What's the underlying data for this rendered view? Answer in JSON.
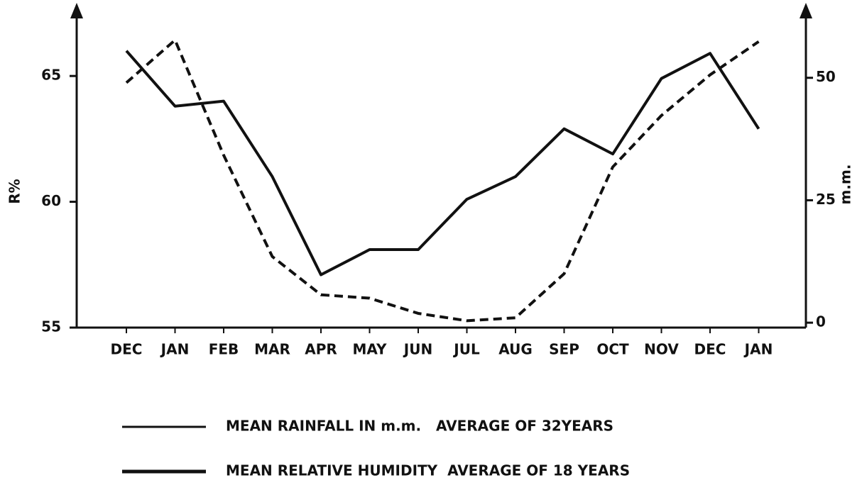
{
  "chart_data": {
    "type": "line",
    "categories": [
      "DEC",
      "JAN",
      "FEB",
      "MAR",
      "APR",
      "MAY",
      "JUN",
      "JUL",
      "AUG",
      "SEP",
      "OCT",
      "NOV",
      "DEC",
      "JAN"
    ],
    "ylabel": "R%",
    "y2label": "m.m.",
    "ylim": [
      55,
      67.4
    ],
    "yticks": [
      55,
      60,
      65
    ],
    "y2lim": [
      -1,
      62.7
    ],
    "y2ticks": [
      0,
      25,
      50
    ],
    "series": [
      {
        "name": "MEAN RAINFALL IN m.m.   AVERAGE OF 32YEARS",
        "color": "#111111",
        "dash": true,
        "axis": "y2",
        "values": [
          49,
          57.7,
          34.2,
          13.5,
          5.7,
          5.0,
          1.9,
          0.4,
          1.0,
          10.0,
          31.8,
          42.3,
          50.6,
          57.4
        ]
      },
      {
        "name": "MEAN RELATIVE HUMIDITY  AVERAGE OF 18 YEARS",
        "color": "#111111",
        "dash": false,
        "values": [
          66.0,
          63.8,
          64.0,
          61.0,
          57.1,
          58.1,
          58.1,
          60.1,
          61.0,
          62.9,
          61.9,
          64.9,
          65.9,
          62.9
        ]
      }
    ]
  }
}
